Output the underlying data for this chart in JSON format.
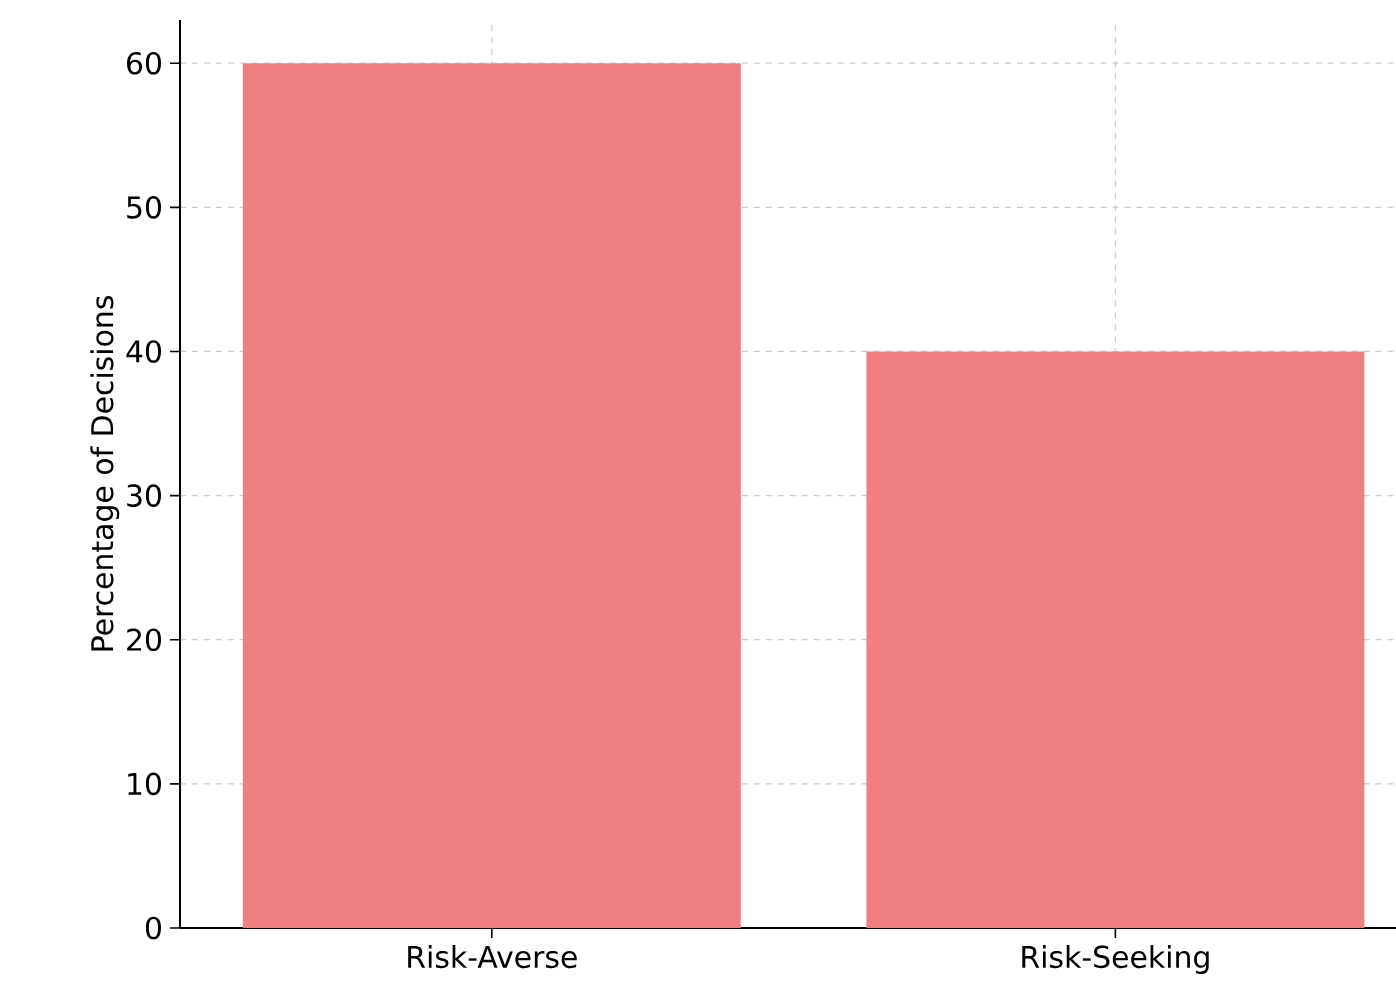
{
  "chart_data": {
    "type": "bar",
    "ylabel": "Percentage of Decisions",
    "categories": [
      "Risk-Averse",
      "Risk-Seeking"
    ],
    "values": [
      60,
      40
    ],
    "color": "#f08080",
    "ylim": [
      0,
      63
    ],
    "yticks": [
      0,
      10,
      20,
      30,
      40,
      50,
      60
    ],
    "grid": true
  }
}
